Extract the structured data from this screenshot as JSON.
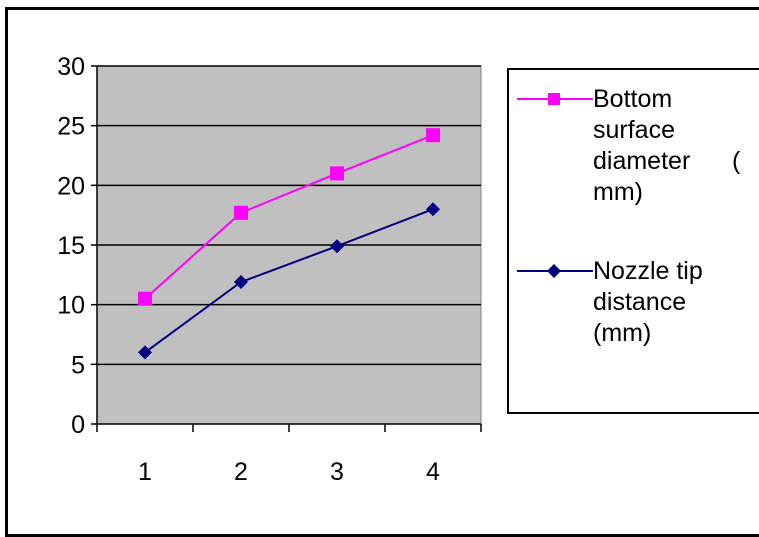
{
  "chart_data": {
    "type": "line",
    "categories": [
      "1",
      "2",
      "3",
      "4"
    ],
    "x": [
      1,
      2,
      3,
      4
    ],
    "ylim": [
      0,
      30
    ],
    "yticks": [
      "0",
      "5",
      "10",
      "15",
      "20",
      "25",
      "30"
    ],
    "grid": true,
    "legend_position": "right",
    "series": [
      {
        "name": "Bottom surface diameter ( mm)",
        "name_lines": [
          "Bottom",
          "surface",
          "diameter      (",
          "mm)"
        ],
        "values": [
          10.5,
          17.7,
          21.0,
          24.2
        ],
        "color": "#ff00ff",
        "marker": "square"
      },
      {
        "name": "Nozzle tip distance (mm)",
        "name_lines": [
          "Nozzle tip",
          "distance",
          "(mm)"
        ],
        "values": [
          6.0,
          11.9,
          14.9,
          18.0
        ],
        "color": "#000080",
        "marker": "diamond"
      }
    ]
  },
  "colors": {
    "plot_area": "#c0c0c0",
    "gridline": "#000000"
  }
}
